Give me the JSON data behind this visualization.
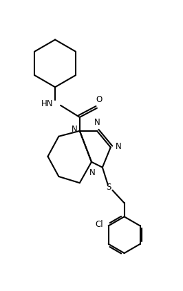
{
  "background_color": "#ffffff",
  "line_color": "#000000",
  "line_width": 1.5,
  "fig_width": 2.66,
  "fig_height": 4.22,
  "dpi": 100,
  "font_size": 8.5,
  "xlim": [
    0,
    10
  ],
  "ylim": [
    0,
    14
  ]
}
